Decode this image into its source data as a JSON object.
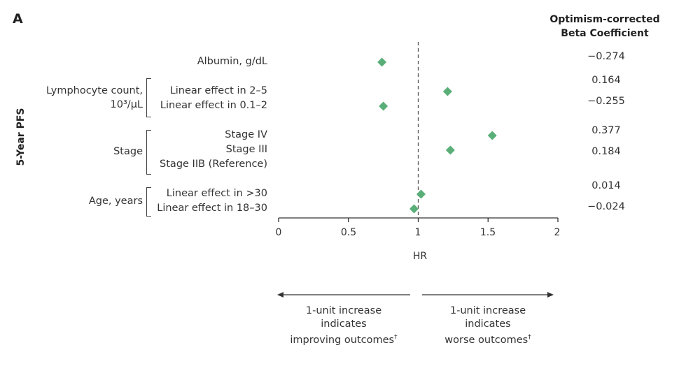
{
  "panel_label": "A",
  "beta_header": {
    "line1": "Optimism-corrected",
    "line2": "Beta Coefficient"
  },
  "y_axis_label": "5-Year PFS",
  "groups": [
    {
      "label_lines": [
        "Lymphocyte count,",
        "10³/μL"
      ]
    },
    {
      "label_lines": [
        "Stage"
      ]
    },
    {
      "label_lines": [
        "Age, years"
      ]
    }
  ],
  "chart_data": {
    "type": "scatter",
    "title": "",
    "xlabel": "HR",
    "ylabel": "5-Year PFS",
    "xlim": [
      0,
      2
    ],
    "xticks": [
      0,
      0.5,
      1,
      1.5,
      2
    ],
    "xtick_labels": [
      "0",
      "0.5",
      "1",
      "1.5",
      "2"
    ],
    "reference_line": 1,
    "marker_color": "#5aaf78",
    "rows": [
      {
        "label": "Albumin, g/dL",
        "hr": 0.74,
        "beta": "−0.274"
      },
      {
        "label": "Linear effect in 2–5",
        "hr": 1.21,
        "beta": "0.164"
      },
      {
        "label": "Linear effect in 0.1–2",
        "hr": 0.75,
        "beta": "−0.255"
      },
      {
        "label": "Stage IV",
        "hr": 1.53,
        "beta": "0.377"
      },
      {
        "label": "Stage III",
        "hr": 1.23,
        "beta": "0.184"
      },
      {
        "label": "Stage IIB (Reference)",
        "hr": null,
        "beta": null
      },
      {
        "label": "Linear effect in >30",
        "hr": 1.02,
        "beta": "0.014"
      },
      {
        "label": "Linear effect in 18–30",
        "hr": 0.97,
        "beta": "−0.024"
      }
    ]
  },
  "notes": {
    "left": {
      "line1": "1-unit increase",
      "line2": "indicates",
      "line3": "improving outcomes",
      "sup": "†"
    },
    "right": {
      "line1": "1-unit increase",
      "line2": "indicates",
      "line3": "worse outcomes",
      "sup": "†"
    }
  }
}
